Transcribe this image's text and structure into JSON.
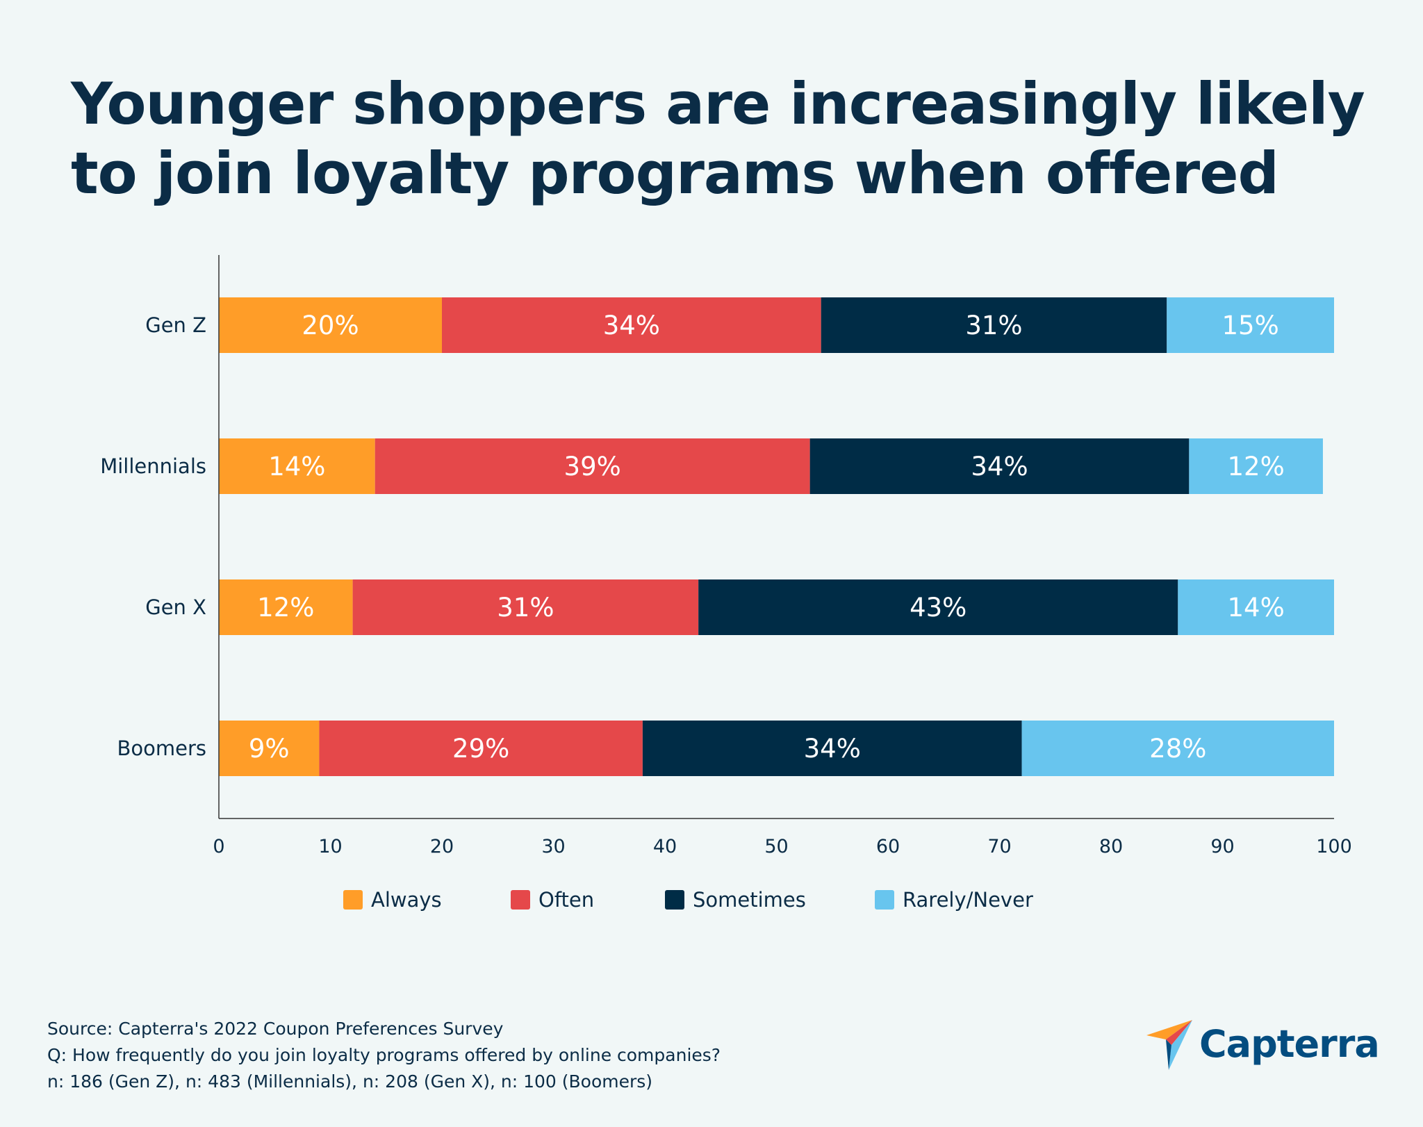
{
  "title": {
    "line1": "Younger shoppers are increasingly likely",
    "line2": "to join loyalty programs when offered"
  },
  "colors": {
    "background": "#f1f7f7",
    "axis": "#333333",
    "always": "#ff9d28",
    "often": "#e5484a",
    "sometimes": "#002c46",
    "rarely_never": "#68c5ee",
    "text_dark": "#0b2c46",
    "brand": "#044d80"
  },
  "chart_data": {
    "type": "bar",
    "orientation": "horizontal",
    "stacked": true,
    "title": "Younger shoppers are increasingly likely to join loyalty programs when offered",
    "categories": [
      "Gen Z",
      "Millennials",
      "Gen X",
      "Boomers"
    ],
    "series": [
      {
        "name": "Always",
        "color": "#ff9d28",
        "values": [
          20,
          14,
          12,
          9
        ],
        "labels": [
          "20%",
          "14%",
          "12%",
          "9%"
        ]
      },
      {
        "name": "Often",
        "color": "#e5484a",
        "values": [
          34,
          39,
          31,
          29
        ],
        "labels": [
          "34%",
          "39%",
          "31%",
          "29%"
        ]
      },
      {
        "name": "Sometimes",
        "color": "#002c46",
        "values": [
          31,
          34,
          43,
          34
        ],
        "labels": [
          "31%",
          "34%",
          "43%",
          "34%"
        ]
      },
      {
        "name": "Rarely/Never",
        "color": "#68c5ee",
        "values": [
          15,
          12,
          14,
          28
        ],
        "labels": [
          "15%",
          "12%",
          "14%",
          "28%"
        ]
      }
    ],
    "xlim": [
      0,
      100
    ],
    "xticks": [
      0,
      10,
      20,
      30,
      40,
      50,
      60,
      70,
      80,
      90,
      100
    ],
    "xlabel": "",
    "ylabel": "",
    "grid": false,
    "legend_position": "bottom"
  },
  "legend": {
    "items": [
      "Always",
      "Often",
      "Sometimes",
      "Rarely/Never"
    ]
  },
  "footer": {
    "source": "Source: Capterra's 2022 Coupon Preferences Survey",
    "question": "Q: How frequently do you join loyalty programs offered by online companies?",
    "sample": "n: 186 (Gen Z), n: 483 (Millennials), n: 208 (Gen X), n: 100 (Boomers)"
  },
  "brand": {
    "name": "Capterra",
    "logo_icon": "capterra-arrow-icon"
  }
}
